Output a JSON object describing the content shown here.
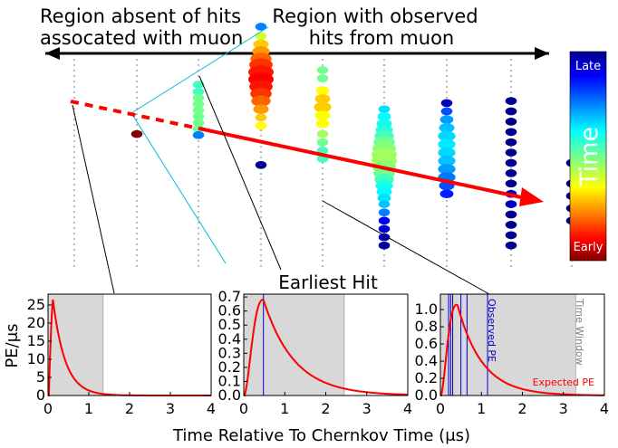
{
  "annotations": {
    "region_absent_line1": "Region absent of hits",
    "region_absent_line2": "assocated with muon",
    "region_observed_line1": "Region with observed",
    "region_observed_line2": "hits from muon",
    "earliest_hit": "Earliest Hit"
  },
  "colorbar": {
    "title": "Time",
    "top_label": "Late",
    "bottom_label": "Early"
  },
  "colors": {
    "muon_track": "#ff0000",
    "cherenkov_cone": "#00bcd4",
    "window_shade": "#d8d8d8",
    "observed_pe_line": "#0000cc",
    "expected_pe_curve": "#ff0000"
  },
  "strings": [
    {
      "hits": []
    },
    {
      "hits": [
        {
          "z": 0.72,
          "size": 0.3,
          "t": 0.0
        }
      ]
    },
    {
      "hits": [
        {
          "z": 0.03,
          "size": 0.3,
          "t": 0.55
        },
        {
          "z": 0.1,
          "size": 0.3,
          "t": 0.55
        },
        {
          "z": 0.16,
          "size": 0.3,
          "t": 0.5
        },
        {
          "z": 0.22,
          "size": 0.3,
          "t": 0.5
        },
        {
          "z": 0.28,
          "size": 0.3,
          "t": 0.5
        },
        {
          "z": 0.34,
          "size": 0.3,
          "t": 0.5
        },
        {
          "z": 0.4,
          "size": 0.3,
          "t": 0.5
        },
        {
          "z": 0.46,
          "size": 0.3,
          "t": 0.5
        },
        {
          "z": 0.52,
          "size": 0.3,
          "t": 0.75
        }
      ]
    },
    {
      "hits": [
        {
          "z": -0.32,
          "size": 0.3,
          "t": 0.75
        },
        {
          "z": -0.23,
          "size": 0.3,
          "t": 0.4
        },
        {
          "z": -0.15,
          "size": 0.5,
          "t": 0.3
        },
        {
          "z": -0.08,
          "size": 0.6,
          "t": 0.25
        },
        {
          "z": -0.01,
          "size": 0.8,
          "t": 0.2
        },
        {
          "z": 0.05,
          "size": 0.9,
          "t": 0.15
        },
        {
          "z": 0.12,
          "size": 1.0,
          "t": 0.12
        },
        {
          "z": 0.19,
          "size": 1.0,
          "t": 0.1
        },
        {
          "z": 0.26,
          "size": 0.9,
          "t": 0.12
        },
        {
          "z": 0.33,
          "size": 0.8,
          "t": 0.15
        },
        {
          "z": 0.4,
          "size": 0.7,
          "t": 0.2
        },
        {
          "z": 0.48,
          "size": 0.5,
          "t": 0.25
        },
        {
          "z": 0.56,
          "size": 0.3,
          "t": 0.3
        },
        {
          "z": 0.64,
          "size": 0.3,
          "t": 0.35
        },
        {
          "z": 1.02,
          "size": 0.3,
          "t": 1.0
        }
      ]
    },
    {
      "hits": [
        {
          "z": 0.1,
          "size": 0.3,
          "t": 0.5
        },
        {
          "z": 0.18,
          "size": 0.3,
          "t": 0.5
        },
        {
          "z": 0.3,
          "size": 0.4,
          "t": 0.35
        },
        {
          "z": 0.38,
          "size": 0.5,
          "t": 0.3
        },
        {
          "z": 0.46,
          "size": 0.6,
          "t": 0.3
        },
        {
          "z": 0.54,
          "size": 0.5,
          "t": 0.35
        },
        {
          "z": 0.62,
          "size": 0.4,
          "t": 0.35
        },
        {
          "z": 0.72,
          "size": 0.3,
          "t": 0.45
        },
        {
          "z": 0.8,
          "size": 0.3,
          "t": 0.5
        },
        {
          "z": 0.88,
          "size": 0.3,
          "t": 0.55
        },
        {
          "z": 0.96,
          "size": 0.3,
          "t": 0.55
        }
      ]
    },
    {
      "hits": [
        {
          "z": 0.48,
          "size": 0.3,
          "t": 0.65
        },
        {
          "z": 0.55,
          "size": 0.4,
          "t": 0.62
        },
        {
          "z": 0.62,
          "size": 0.5,
          "t": 0.6
        },
        {
          "z": 0.68,
          "size": 0.6,
          "t": 0.58
        },
        {
          "z": 0.74,
          "size": 0.7,
          "t": 0.55
        },
        {
          "z": 0.8,
          "size": 0.8,
          "t": 0.5
        },
        {
          "z": 0.86,
          "size": 0.9,
          "t": 0.48
        },
        {
          "z": 0.92,
          "size": 1.0,
          "t": 0.45
        },
        {
          "z": 0.98,
          "size": 1.0,
          "t": 0.45
        },
        {
          "z": 1.04,
          "size": 0.9,
          "t": 0.48
        },
        {
          "z": 1.1,
          "size": 0.8,
          "t": 0.5
        },
        {
          "z": 1.16,
          "size": 0.7,
          "t": 0.55
        },
        {
          "z": 1.22,
          "size": 0.6,
          "t": 0.6
        },
        {
          "z": 1.28,
          "size": 0.5,
          "t": 0.62
        },
        {
          "z": 1.34,
          "size": 0.4,
          "t": 0.65
        },
        {
          "z": 1.4,
          "size": 0.3,
          "t": 0.68
        },
        {
          "z": 1.48,
          "size": 0.3,
          "t": 0.75
        },
        {
          "z": 1.56,
          "size": 0.3,
          "t": 0.9
        },
        {
          "z": 1.64,
          "size": 0.3,
          "t": 0.92
        },
        {
          "z": 1.72,
          "size": 0.3,
          "t": 0.95
        },
        {
          "z": 1.8,
          "size": 0.3,
          "t": 1.0
        }
      ]
    },
    {
      "hits": [
        {
          "z": 0.42,
          "size": 0.3,
          "t": 0.95
        },
        {
          "z": 0.5,
          "size": 0.3,
          "t": 0.8
        },
        {
          "z": 0.58,
          "size": 0.4,
          "t": 0.72
        },
        {
          "z": 0.66,
          "size": 0.5,
          "t": 0.68
        },
        {
          "z": 0.74,
          "size": 0.6,
          "t": 0.66
        },
        {
          "z": 0.82,
          "size": 0.6,
          "t": 0.64
        },
        {
          "z": 0.9,
          "size": 0.6,
          "t": 0.66
        },
        {
          "z": 0.98,
          "size": 0.6,
          "t": 0.68
        },
        {
          "z": 1.06,
          "size": 0.6,
          "t": 0.72
        },
        {
          "z": 1.14,
          "size": 0.6,
          "t": 0.76
        },
        {
          "z": 1.22,
          "size": 0.5,
          "t": 0.8
        },
        {
          "z": 1.3,
          "size": 0.4,
          "t": 0.85
        }
      ]
    },
    {
      "hits": [
        {
          "z": 0.4,
          "size": 0.3,
          "t": 1.0
        },
        {
          "z": 0.5,
          "size": 0.3,
          "t": 1.0
        },
        {
          "z": 0.6,
          "size": 0.3,
          "t": 1.0
        },
        {
          "z": 0.7,
          "size": 0.3,
          "t": 1.0
        },
        {
          "z": 0.8,
          "size": 0.3,
          "t": 1.0
        },
        {
          "z": 0.9,
          "size": 0.3,
          "t": 1.0
        },
        {
          "z": 1.0,
          "size": 0.3,
          "t": 1.0
        },
        {
          "z": 1.1,
          "size": 0.3,
          "t": 1.0
        },
        {
          "z": 1.2,
          "size": 0.3,
          "t": 1.0
        },
        {
          "z": 1.3,
          "size": 0.3,
          "t": 0.95
        },
        {
          "z": 1.4,
          "size": 0.3,
          "t": 0.95
        },
        {
          "z": 1.5,
          "size": 0.3,
          "t": 1.0
        },
        {
          "z": 1.6,
          "size": 0.3,
          "t": 1.0
        },
        {
          "z": 1.7,
          "size": 0.3,
          "t": 1.0
        },
        {
          "z": 1.8,
          "size": 0.3,
          "t": 1.0
        }
      ]
    },
    {
      "hits": [
        {
          "z": 1.0,
          "size": 0.3,
          "t": 1.0
        },
        {
          "z": 1.2,
          "size": 0.3,
          "t": 1.0
        },
        {
          "z": 1.32,
          "size": 0.3,
          "t": 1.0
        },
        {
          "z": 1.44,
          "size": 0.3,
          "t": 1.0
        },
        {
          "z": 1.56,
          "size": 0.3,
          "t": 1.0
        }
      ]
    }
  ],
  "chart_data": [
    {
      "type": "line",
      "panel": "left",
      "ylabel": "PE/μs",
      "xlim": [
        0,
        4
      ],
      "ylim": [
        0,
        28
      ],
      "x_ticks": [
        "0",
        "1",
        "2",
        "3",
        "4"
      ],
      "y_ticks": [
        "0",
        "5",
        "10",
        "15",
        "20",
        "25"
      ],
      "y_tick_values": [
        0,
        5,
        10,
        15,
        20,
        25
      ],
      "time_window": [
        0,
        1.35
      ],
      "observed_pe": [],
      "curve": {
        "peak_time": 0.12,
        "peak_value": 26.5,
        "decay_tau": 0.3
      }
    },
    {
      "type": "line",
      "panel": "middle",
      "xlim": [
        0,
        4
      ],
      "ylim": [
        0,
        0.72
      ],
      "x_ticks": [
        "0",
        "1",
        "2",
        "3",
        "4"
      ],
      "y_ticks": [
        "0.0",
        "0.1",
        "0.2",
        "0.3",
        "0.4",
        "0.5",
        "0.6",
        "0.7"
      ],
      "y_tick_values": [
        0,
        0.1,
        0.2,
        0.3,
        0.4,
        0.5,
        0.6,
        0.7
      ],
      "time_window": [
        0,
        2.45
      ],
      "observed_pe": [
        0.48
      ],
      "curve": {
        "peak_time": 0.48,
        "peak_value": 0.68,
        "decay_tau": 0.75
      }
    },
    {
      "type": "line",
      "panel": "right",
      "xlim": [
        0,
        4
      ],
      "ylim": [
        0,
        1.18
      ],
      "x_ticks": [
        "0",
        "1",
        "2",
        "3",
        "4"
      ],
      "y_ticks": [
        "0.0",
        "0.2",
        "0.4",
        "0.6",
        "0.8",
        "1.0"
      ],
      "y_tick_values": [
        0,
        0.2,
        0.4,
        0.6,
        0.8,
        1.0
      ],
      "time_window": [
        0,
        3.3
      ],
      "observed_pe": [
        0.2,
        0.25,
        0.3,
        0.5,
        0.65,
        1.15
      ],
      "curve": {
        "peak_time": 0.42,
        "peak_value": 1.05,
        "decay_tau": 0.6
      },
      "legend_observed": "Observed PE",
      "legend_window": "Time Window",
      "legend_expected": "Expected PE"
    }
  ],
  "shared_axes": {
    "xlabel": "Time Relative To Chernkov Time (μs)"
  }
}
